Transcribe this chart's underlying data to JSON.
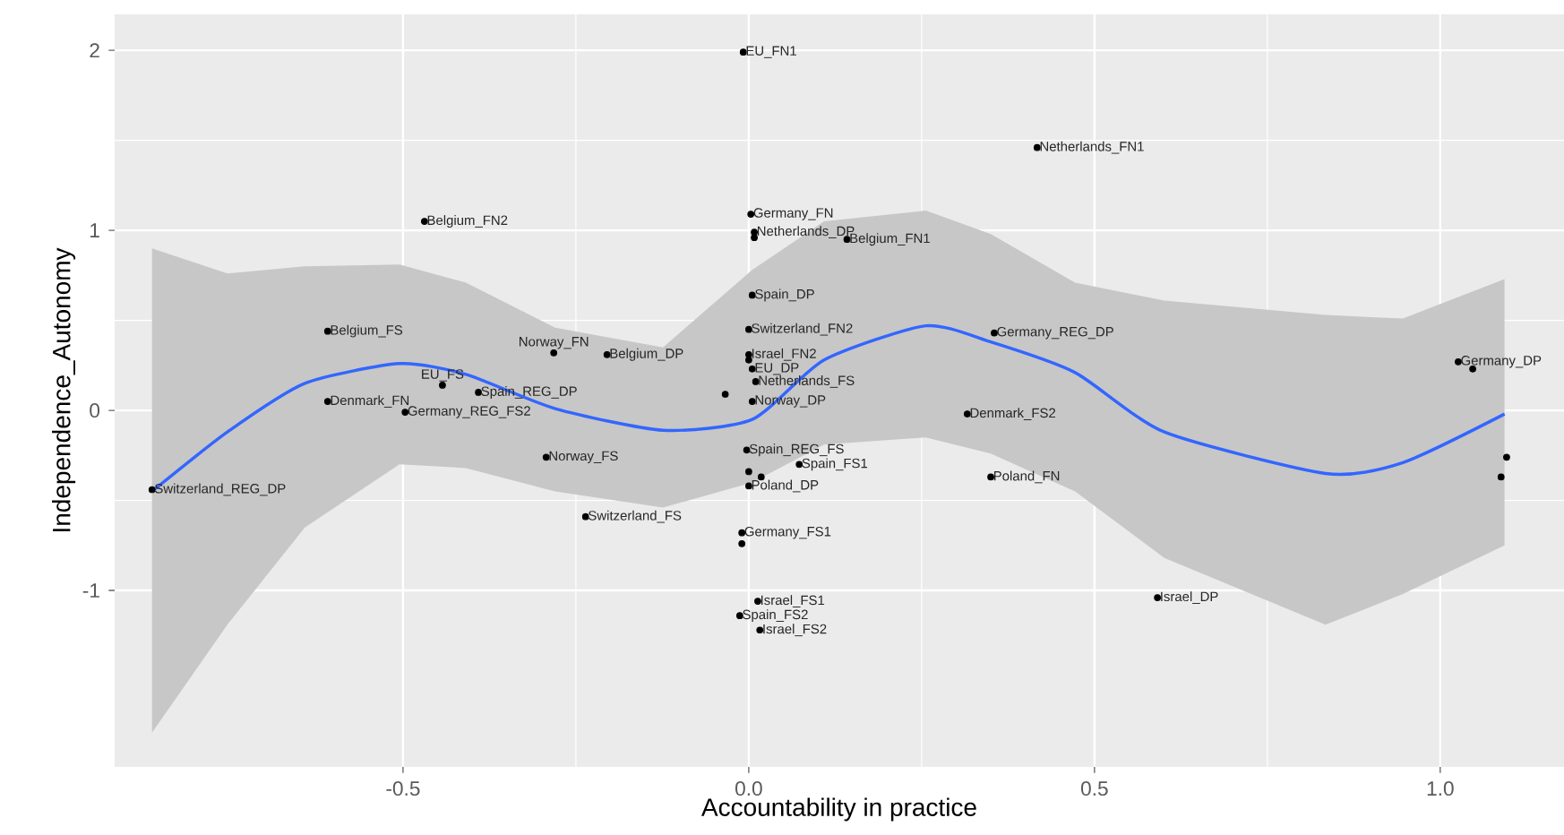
{
  "chart_data": {
    "type": "scatter",
    "xlabel": "Accountability in practice",
    "ylabel": "Independence_Autonomy",
    "xlim": [
      -0.917,
      1.179
    ],
    "ylim": [
      -1.98,
      2.2
    ],
    "xticks": [
      {
        "value": -0.5,
        "label": "-0.5"
      },
      {
        "value": 0,
        "label": "0.0"
      },
      {
        "value": 0.5,
        "label": "0.5"
      },
      {
        "value": 1,
        "label": "1.0"
      }
    ],
    "yticks": [
      -1,
      0,
      1,
      2
    ],
    "grid": true,
    "series": [
      {
        "color": "#000000",
        "x": [
          -0.863,
          -0.609,
          -0.609,
          -0.469,
          -0.443,
          -0.391,
          -0.497,
          -0.282,
          -0.205,
          -0.293,
          -0.236,
          -0.008,
          0.417,
          0.003,
          0.008,
          0.008,
          0.142,
          0.005,
          0.0,
          0.0,
          0.0,
          0.005,
          0.01,
          -0.034,
          0.005,
          0.355,
          0.316,
          -0.003,
          0.073,
          0.0,
          0.018,
          0.0,
          0.35,
          -0.01,
          -0.01,
          0.013,
          -0.013,
          0.016,
          0.591,
          1.026,
          1.047,
          1.096,
          1.088
        ],
        "values": [
          -0.44,
          0.44,
          0.05,
          1.05,
          0.14,
          0.1,
          -0.01,
          0.32,
          0.31,
          -0.26,
          -0.59,
          1.99,
          1.46,
          1.09,
          0.99,
          0.96,
          0.95,
          0.64,
          0.45,
          0.31,
          0.28,
          0.23,
          0.16,
          0.09,
          0.05,
          0.43,
          -0.02,
          -0.22,
          -0.3,
          -0.34,
          -0.37,
          -0.42,
          -0.37,
          -0.68,
          -0.74,
          -1.06,
          -1.14,
          -1.22,
          -1.04,
          0.27,
          0.23,
          -0.26,
          -0.37
        ]
      },
      {
        "type": "line",
        "color": "#3366ff",
        "x": [
          -0.863,
          -0.754,
          -0.642,
          -0.505,
          -0.409,
          -0.28,
          -0.124,
          0.005,
          0.109,
          0.256,
          0.35,
          0.472,
          0.601,
          0.834,
          0.946,
          1.093
        ],
        "values": [
          -0.45,
          -0.12,
          0.15,
          0.26,
          0.2,
          0.01,
          -0.11,
          -0.05,
          0.28,
          0.47,
          0.38,
          0.21,
          -0.12,
          -0.35,
          -0.29,
          -0.02
        ],
        "lower": [
          -1.79,
          -1.19,
          -0.65,
          -0.3,
          -0.32,
          -0.45,
          -0.54,
          -0.4,
          -0.19,
          -0.15,
          -0.24,
          -0.45,
          -0.82,
          -1.19,
          -1.02,
          -0.75
        ],
        "upper": [
          0.9,
          0.76,
          0.8,
          0.81,
          0.71,
          0.46,
          0.35,
          0.78,
          1.05,
          1.11,
          0.98,
          0.71,
          0.61,
          0.53,
          0.51,
          0.73
        ]
      }
    ],
    "annotations": [
      {
        "text": "Switzerland_REG_DP",
        "x": -0.863,
        "y": -0.44
      },
      {
        "text": "Belgium_FS",
        "x": -0.609,
        "y": 0.44
      },
      {
        "text": "Denmark_FN",
        "x": -0.609,
        "y": 0.05
      },
      {
        "text": "Belgium_FN2",
        "x": -0.469,
        "y": 1.05
      },
      {
        "text": "EU_FS",
        "x": -0.443,
        "y": 0.14
      },
      {
        "text": "Spain_REG_DP",
        "x": -0.391,
        "y": 0.1
      },
      {
        "text": "Germany_REG_FS2",
        "x": -0.497,
        "y": -0.01
      },
      {
        "text": "Norway_FN",
        "x": -0.282,
        "y": 0.32
      },
      {
        "text": "Belgium_DP",
        "x": -0.205,
        "y": 0.31
      },
      {
        "text": "Norway_FS",
        "x": -0.293,
        "y": -0.26
      },
      {
        "text": "Switzerland_FS",
        "x": -0.236,
        "y": -0.59
      },
      {
        "text": "EU_FN1",
        "x": -0.008,
        "y": 1.99
      },
      {
        "text": "Netherlands_FN1",
        "x": 0.417,
        "y": 1.46
      },
      {
        "text": "Germany_FN",
        "x": 0.003,
        "y": 1.09
      },
      {
        "text": "Netherlands_DP",
        "x": 0.008,
        "y": 0.99
      },
      {
        "text": "Belgium_FN1",
        "x": 0.142,
        "y": 0.95
      },
      {
        "text": "Spain_DP",
        "x": 0.005,
        "y": 0.64
      },
      {
        "text": "Switzerland_FN2",
        "x": 0.0,
        "y": 0.45
      },
      {
        "text": "Israel_FN2",
        "x": 0.0,
        "y": 0.31
      },
      {
        "text": "EU_DP",
        "x": 0.005,
        "y": 0.23
      },
      {
        "text": "Netherlands_FS",
        "x": 0.01,
        "y": 0.16
      },
      {
        "text": "Norway_DP",
        "x": 0.005,
        "y": 0.05
      },
      {
        "text": "Germany_REG_DP",
        "x": 0.355,
        "y": 0.43
      },
      {
        "text": "Denmark_FS2",
        "x": 0.316,
        "y": -0.02
      },
      {
        "text": "Spain_REG_FS",
        "x": -0.003,
        "y": -0.22
      },
      {
        "text": "Spain_FS1",
        "x": 0.073,
        "y": -0.3
      },
      {
        "text": "Poland_DP",
        "x": 0.0,
        "y": -0.42
      },
      {
        "text": "Poland_FN",
        "x": 0.35,
        "y": -0.37
      },
      {
        "text": "Germany_FS1",
        "x": -0.01,
        "y": -0.68
      },
      {
        "text": "Israel_FS1",
        "x": 0.013,
        "y": -1.06
      },
      {
        "text": "Spain_FS2",
        "x": -0.013,
        "y": -1.14
      },
      {
        "text": "Israel_FS2",
        "x": 0.016,
        "y": -1.22
      },
      {
        "text": "Israel_DP",
        "x": 0.591,
        "y": -1.04
      },
      {
        "text": "Germany_DP",
        "x": 1.026,
        "y": 0.27
      }
    ]
  }
}
